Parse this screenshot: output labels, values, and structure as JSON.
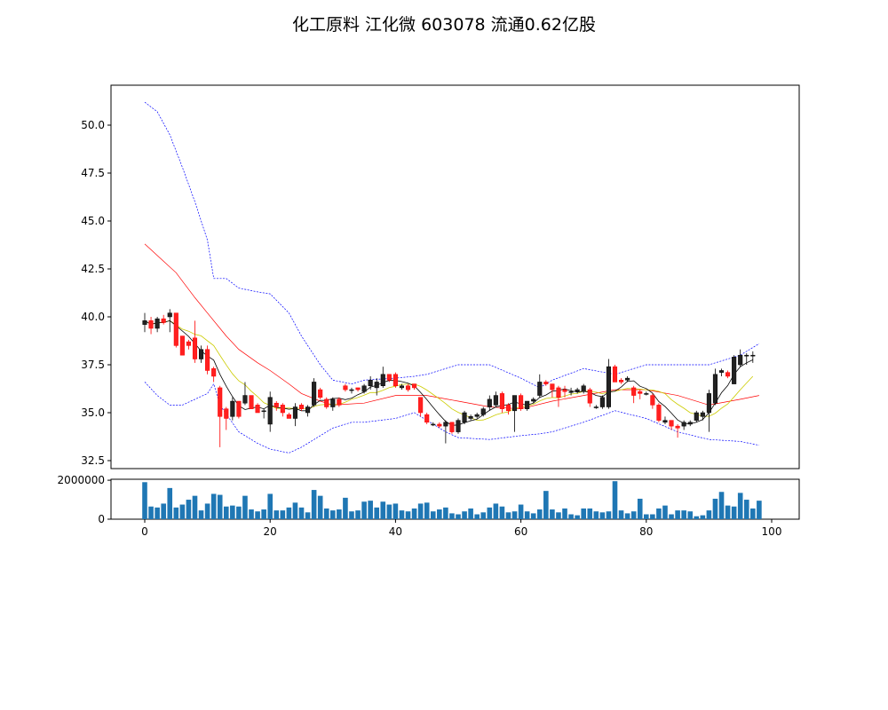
{
  "chart_data": [
    {
      "type": "candlestick",
      "title": "化工原料 江化微 603078 流通0.62亿股",
      "ylim": [
        32.0,
        52.0
      ],
      "xlim": [
        -5,
        104
      ],
      "yticks": [
        "32.5",
        "35.0",
        "37.5",
        "40.0",
        "42.5",
        "45.0",
        "47.5",
        "50.0"
      ],
      "ytick_values": [
        32.5,
        35.0,
        37.5,
        40.0,
        42.5,
        45.0,
        47.5,
        50.0
      ],
      "colors": {
        "up": "#000000",
        "down": "#ff0000",
        "ma_short": "#000000",
        "ma_mid": "#cccc00",
        "boll_mid": "#ff0000",
        "boll_band": "#0000ff"
      },
      "ohlc": [
        [
          39.6,
          40.2,
          39.2,
          39.8
        ],
        [
          39.8,
          40.0,
          39.1,
          39.4
        ],
        [
          39.4,
          40.0,
          39.2,
          39.9
        ],
        [
          39.9,
          40.1,
          39.6,
          39.7
        ],
        [
          40.0,
          40.4,
          39.2,
          40.2
        ],
        [
          40.2,
          40.2,
          38.4,
          38.5
        ],
        [
          39.0,
          39.0,
          38.0,
          38.0
        ],
        [
          38.7,
          38.8,
          38.3,
          38.5
        ],
        [
          38.9,
          39.8,
          37.6,
          37.8
        ],
        [
          37.8,
          38.5,
          37.6,
          38.3
        ],
        [
          38.3,
          38.5,
          37.0,
          37.2
        ],
        [
          37.3,
          37.4,
          36.6,
          36.9
        ],
        [
          36.3,
          36.4,
          33.2,
          34.8
        ],
        [
          35.2,
          35.3,
          34.1,
          34.7
        ],
        [
          34.8,
          35.8,
          34.6,
          35.6
        ],
        [
          35.6,
          35.6,
          34.7,
          34.8
        ],
        [
          35.5,
          36.6,
          35.4,
          35.9
        ],
        [
          35.9,
          35.9,
          35.2,
          35.2
        ],
        [
          35.4,
          35.5,
          35.0,
          35.0
        ],
        [
          35.1,
          35.2,
          34.7,
          35.1
        ],
        [
          34.4,
          36.1,
          34.0,
          35.8
        ],
        [
          35.5,
          35.6,
          35.1,
          35.3
        ],
        [
          35.4,
          35.5,
          34.8,
          35.0
        ],
        [
          34.9,
          35.0,
          34.7,
          34.7
        ],
        [
          34.7,
          35.5,
          34.3,
          35.3
        ],
        [
          35.4,
          35.5,
          35.1,
          35.2
        ],
        [
          35.0,
          35.4,
          34.8,
          35.3
        ],
        [
          35.4,
          36.8,
          35.3,
          36.6
        ],
        [
          36.2,
          36.3,
          35.7,
          35.8
        ],
        [
          35.7,
          35.8,
          35.2,
          35.3
        ],
        [
          35.3,
          35.8,
          35.1,
          35.7
        ],
        [
          35.7,
          35.8,
          35.3,
          35.4
        ],
        [
          36.4,
          36.5,
          36.1,
          36.2
        ],
        [
          36.2,
          36.3,
          36.0,
          36.2
        ],
        [
          36.3,
          36.3,
          36.1,
          36.2
        ],
        [
          36.1,
          36.5,
          36.0,
          36.4
        ],
        [
          36.4,
          36.9,
          36.2,
          36.7
        ],
        [
          36.3,
          36.8,
          35.9,
          36.6
        ],
        [
          36.4,
          37.4,
          36.3,
          37.0
        ],
        [
          37.0,
          37.0,
          36.6,
          36.7
        ],
        [
          37.0,
          37.1,
          36.3,
          36.4
        ],
        [
          36.3,
          36.5,
          36.2,
          36.4
        ],
        [
          36.4,
          36.5,
          36.1,
          36.2
        ],
        [
          36.5,
          36.5,
          36.2,
          36.3
        ],
        [
          35.8,
          35.8,
          34.8,
          35.0
        ],
        [
          34.9,
          35.0,
          34.4,
          34.5
        ],
        [
          34.4,
          34.5,
          34.3,
          34.4
        ],
        [
          34.4,
          34.5,
          34.2,
          34.3
        ],
        [
          34.3,
          34.6,
          33.4,
          34.5
        ],
        [
          34.5,
          34.5,
          33.9,
          34.0
        ],
        [
          34.0,
          34.7,
          33.9,
          34.6
        ],
        [
          34.5,
          35.1,
          34.4,
          35.0
        ],
        [
          34.7,
          34.9,
          34.6,
          34.8
        ],
        [
          34.8,
          35.0,
          34.7,
          34.9
        ],
        [
          34.9,
          35.3,
          34.8,
          35.2
        ],
        [
          35.3,
          35.9,
          35.1,
          35.7
        ],
        [
          35.4,
          36.1,
          35.3,
          35.9
        ],
        [
          36.0,
          36.1,
          35.0,
          35.2
        ],
        [
          35.4,
          35.5,
          34.9,
          35.1
        ],
        [
          35.1,
          35.9,
          34.0,
          35.9
        ],
        [
          35.9,
          36.0,
          35.1,
          35.2
        ],
        [
          35.2,
          35.6,
          35.1,
          35.6
        ],
        [
          35.6,
          35.8,
          35.5,
          35.7
        ],
        [
          35.9,
          37.0,
          35.8,
          36.6
        ],
        [
          36.6,
          36.7,
          36.4,
          36.5
        ],
        [
          36.5,
          36.5,
          35.8,
          36.2
        ],
        [
          36.3,
          36.4,
          35.3,
          35.8
        ],
        [
          36.2,
          36.4,
          35.8,
          36.1
        ],
        [
          36.1,
          36.3,
          35.9,
          36.1
        ],
        [
          36.1,
          36.3,
          36.0,
          36.2
        ],
        [
          36.1,
          36.5,
          36.0,
          36.4
        ],
        [
          36.2,
          36.3,
          35.3,
          35.5
        ],
        [
          35.3,
          35.4,
          35.2,
          35.3
        ],
        [
          35.3,
          35.9,
          35.2,
          35.8
        ],
        [
          35.3,
          37.8,
          35.2,
          37.4
        ],
        [
          37.4,
          37.5,
          36.6,
          36.6
        ],
        [
          36.7,
          36.8,
          36.5,
          36.6
        ],
        [
          36.7,
          36.9,
          36.6,
          36.8
        ],
        [
          36.3,
          36.4,
          35.5,
          35.9
        ],
        [
          36.1,
          36.2,
          35.7,
          36.0
        ],
        [
          36.0,
          36.1,
          35.9,
          36.0
        ],
        [
          35.9,
          36.0,
          35.2,
          35.4
        ],
        [
          35.4,
          35.5,
          34.5,
          34.6
        ],
        [
          34.5,
          34.8,
          34.4,
          34.6
        ],
        [
          34.6,
          34.6,
          34.1,
          34.3
        ],
        [
          34.3,
          34.4,
          33.7,
          34.2
        ],
        [
          34.3,
          34.6,
          34.1,
          34.5
        ],
        [
          34.4,
          34.6,
          34.3,
          34.5
        ],
        [
          34.6,
          35.1,
          34.5,
          35.0
        ],
        [
          34.8,
          35.1,
          34.6,
          35.0
        ],
        [
          35.0,
          36.2,
          34.0,
          36.0
        ],
        [
          35.5,
          37.3,
          35.4,
          37.0
        ],
        [
          37.1,
          37.3,
          36.9,
          37.2
        ],
        [
          37.1,
          37.2,
          36.8,
          36.9
        ],
        [
          36.5,
          38.0,
          36.5,
          37.9
        ],
        [
          37.5,
          38.3,
          37.4,
          38.0
        ],
        [
          38.0,
          38.1,
          37.5,
          38.0
        ],
        [
          38.0,
          38.2,
          37.6,
          38.0
        ]
      ],
      "bollinger": {
        "mid": [
          [
            0,
            43.8
          ],
          [
            3,
            42.9
          ],
          [
            5,
            42.3
          ],
          [
            8,
            41.0
          ],
          [
            10,
            40.2
          ],
          [
            13,
            39.0
          ],
          [
            15,
            38.3
          ],
          [
            18,
            37.6
          ],
          [
            20,
            37.2
          ],
          [
            23,
            36.5
          ],
          [
            25,
            36.0
          ],
          [
            28,
            35.6
          ],
          [
            30,
            35.4
          ],
          [
            35,
            35.5
          ],
          [
            40,
            35.9
          ],
          [
            45,
            35.9
          ],
          [
            50,
            35.6
          ],
          [
            55,
            35.3
          ],
          [
            60,
            35.2
          ],
          [
            65,
            35.6
          ],
          [
            70,
            35.9
          ],
          [
            75,
            36.2
          ],
          [
            80,
            36.2
          ],
          [
            85,
            35.9
          ],
          [
            90,
            35.4
          ],
          [
            95,
            35.7
          ],
          [
            98,
            35.9
          ]
        ],
        "upper": [
          [
            0,
            51.2
          ],
          [
            2,
            50.7
          ],
          [
            4,
            49.5
          ],
          [
            6,
            47.8
          ],
          [
            8,
            46.0
          ],
          [
            10,
            44.0
          ],
          [
            11,
            42.0
          ],
          [
            13,
            42.0
          ],
          [
            15,
            41.5
          ],
          [
            18,
            41.3
          ],
          [
            20,
            41.2
          ],
          [
            23,
            40.2
          ],
          [
            25,
            39.0
          ],
          [
            28,
            37.5
          ],
          [
            30,
            36.7
          ],
          [
            33,
            36.5
          ],
          [
            35,
            36.7
          ],
          [
            40,
            36.8
          ],
          [
            43,
            36.9
          ],
          [
            45,
            37.0
          ],
          [
            50,
            37.5
          ],
          [
            55,
            37.5
          ],
          [
            60,
            36.8
          ],
          [
            63,
            36.3
          ],
          [
            65,
            36.7
          ],
          [
            70,
            37.3
          ],
          [
            75,
            37.0
          ],
          [
            80,
            37.5
          ],
          [
            85,
            37.5
          ],
          [
            90,
            37.5
          ],
          [
            92,
            37.7
          ],
          [
            95,
            38.0
          ],
          [
            98,
            38.6
          ]
        ],
        "lower": [
          [
            0,
            36.6
          ],
          [
            2,
            35.9
          ],
          [
            4,
            35.4
          ],
          [
            6,
            35.4
          ],
          [
            8,
            35.7
          ],
          [
            10,
            36.0
          ],
          [
            11,
            36.5
          ],
          [
            12,
            35.4
          ],
          [
            15,
            34.0
          ],
          [
            18,
            33.4
          ],
          [
            20,
            33.1
          ],
          [
            23,
            32.9
          ],
          [
            25,
            33.2
          ],
          [
            28,
            33.8
          ],
          [
            30,
            34.2
          ],
          [
            33,
            34.5
          ],
          [
            35,
            34.5
          ],
          [
            40,
            34.7
          ],
          [
            43,
            35.0
          ],
          [
            45,
            34.6
          ],
          [
            48,
            34.0
          ],
          [
            50,
            33.7
          ],
          [
            55,
            33.6
          ],
          [
            60,
            33.8
          ],
          [
            63,
            33.9
          ],
          [
            65,
            34.0
          ],
          [
            70,
            34.5
          ],
          [
            75,
            35.1
          ],
          [
            80,
            34.7
          ],
          [
            85,
            34.0
          ],
          [
            90,
            33.6
          ],
          [
            95,
            33.5
          ],
          [
            98,
            33.3
          ]
        ]
      }
    },
    {
      "type": "bar",
      "ylim": [
        0,
        2050000
      ],
      "yticks": [
        "0",
        "2000000"
      ],
      "ytick_values": [
        0,
        2000000
      ],
      "xticks": [
        "0",
        "20",
        "40",
        "60",
        "80",
        "100"
      ],
      "xtick_values": [
        0,
        20,
        40,
        60,
        80,
        100
      ],
      "color": "#1f77b4",
      "values": [
        1900000,
        650000,
        600000,
        800000,
        1600000,
        600000,
        750000,
        1000000,
        1200000,
        450000,
        800000,
        1300000,
        1250000,
        650000,
        700000,
        650000,
        1200000,
        500000,
        400000,
        500000,
        1300000,
        450000,
        450000,
        600000,
        850000,
        600000,
        350000,
        1500000,
        1200000,
        550000,
        450000,
        500000,
        1100000,
        400000,
        450000,
        900000,
        950000,
        600000,
        900000,
        750000,
        800000,
        450000,
        400000,
        550000,
        800000,
        850000,
        400000,
        500000,
        600000,
        300000,
        250000,
        400000,
        550000,
        250000,
        350000,
        600000,
        800000,
        650000,
        350000,
        400000,
        750000,
        400000,
        300000,
        500000,
        1450000,
        500000,
        350000,
        550000,
        250000,
        200000,
        550000,
        550000,
        400000,
        350000,
        400000,
        1950000,
        450000,
        300000,
        400000,
        1050000,
        250000,
        250000,
        550000,
        700000,
        250000,
        450000,
        450000,
        400000,
        150000,
        200000,
        450000,
        1050000,
        1400000,
        700000,
        650000,
        1350000,
        1000000,
        550000,
        950000
      ]
    }
  ]
}
